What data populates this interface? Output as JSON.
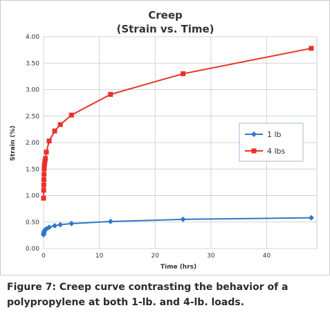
{
  "chart_data": {
    "type": "line",
    "title": "Creep",
    "subtitle": "(Strain vs. Time)",
    "xlabel": "Time (hrs)",
    "ylabel": "Strain (%)",
    "xlim": [
      0,
      49
    ],
    "ylim": [
      0,
      4.0
    ],
    "xticks": [
      0,
      10,
      20,
      30,
      40
    ],
    "yticks": [
      0.0,
      0.5,
      1.0,
      1.5,
      2.0,
      2.5,
      3.0,
      3.5,
      4.0
    ],
    "xtick_labels": [
      "0",
      "10",
      "20",
      "30",
      "40"
    ],
    "ytick_labels": [
      "0.00",
      "0.50",
      "1.00",
      "1.50",
      "2.00",
      "2.50",
      "3.00",
      "3.50",
      "4.00"
    ],
    "grid": true,
    "legend_position": "right",
    "series": [
      {
        "name": "1 lb",
        "color": "#2e78c7",
        "marker": "diamond",
        "x": [
          0,
          0.02,
          0.05,
          0.1,
          0.25,
          0.5,
          1,
          2,
          3,
          5,
          12,
          25,
          48
        ],
        "y": [
          0.26,
          0.28,
          0.3,
          0.32,
          0.35,
          0.37,
          0.4,
          0.43,
          0.45,
          0.47,
          0.51,
          0.55,
          0.58
        ]
      },
      {
        "name": "4 lbs",
        "color": "#e8312a",
        "marker": "square",
        "x": [
          0,
          0.02,
          0.04,
          0.06,
          0.08,
          0.1,
          0.13,
          0.17,
          0.25,
          0.33,
          0.5,
          1,
          2,
          3,
          5,
          12,
          25,
          48
        ],
        "y": [
          0.95,
          1.1,
          1.2,
          1.3,
          1.4,
          1.5,
          1.55,
          1.6,
          1.65,
          1.7,
          1.82,
          2.03,
          2.22,
          2.34,
          2.52,
          2.91,
          3.3,
          3.78
        ]
      }
    ]
  },
  "caption": {
    "line1": "Figure 7: Creep curve contrasting the behavior of a",
    "line2": "polypropylene at both 1-lb. and 4-lb. loads."
  }
}
